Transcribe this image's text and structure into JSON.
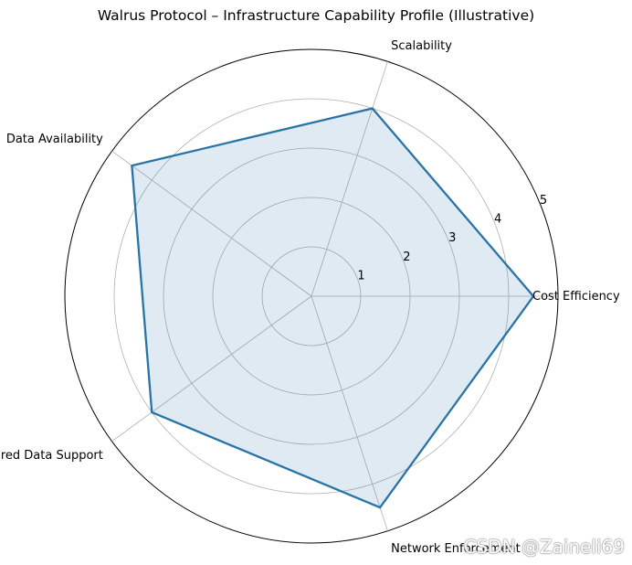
{
  "chart_data": {
    "type": "radar",
    "title": "Walrus Protocol – Infrastructure Capability Profile (Illustrative)",
    "categories": [
      "Cost Efficiency",
      "Scalability",
      "Data Availability",
      "Unstructured Data Support",
      "Network Enforcement"
    ],
    "series": [
      {
        "values": [
          4.5,
          4.0,
          4.5,
          4.0,
          4.5
        ]
      }
    ],
    "rlim": [
      0,
      5
    ],
    "rticks": [
      "1",
      "2",
      "3",
      "4",
      "5"
    ],
    "grid": true,
    "colors": {
      "line": "#2874a6",
      "fill": "#2874a6",
      "grid": "#b0b0b0",
      "outer": "#000000"
    }
  },
  "watermark": "CSDN @Zaineli69"
}
